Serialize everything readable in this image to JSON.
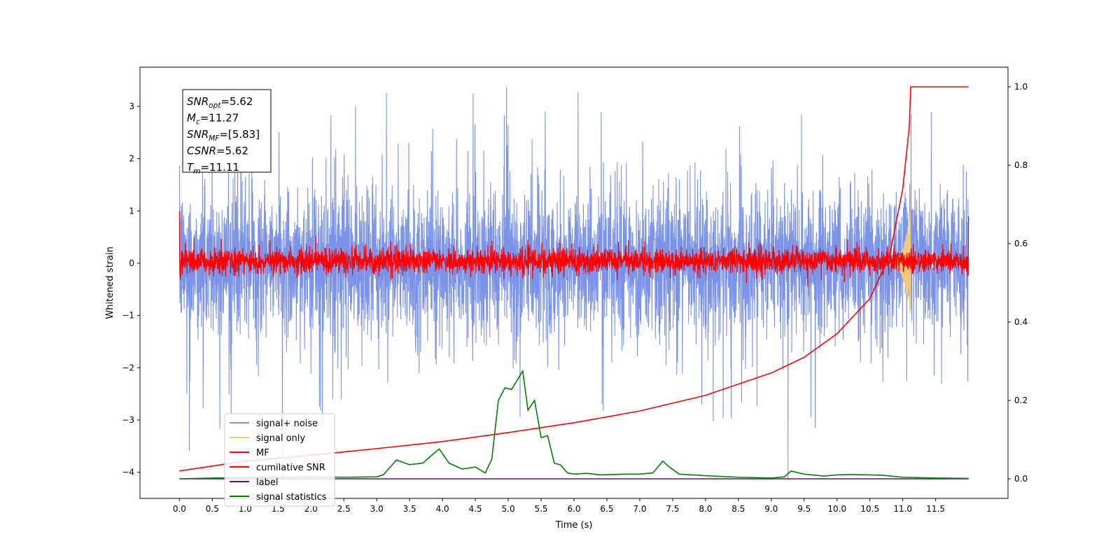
{
  "chart_data": {
    "type": "line",
    "xlabel": "Time (s)",
    "ylabel": "Whitened strain",
    "xlim": [
      -0.6,
      12.6
    ],
    "ylim": [
      -4.5,
      3.75
    ],
    "y2lim": [
      -0.05,
      1.05
    ],
    "x_ticks": [
      0.0,
      0.5,
      1.0,
      1.5,
      2.0,
      2.5,
      3.0,
      3.5,
      4.0,
      4.5,
      5.0,
      5.5,
      6.0,
      6.5,
      7.0,
      7.5,
      8.0,
      8.5,
      9.0,
      9.5,
      10.0,
      10.5,
      11.0,
      11.5
    ],
    "x_tick_labels": [
      "0.0",
      "0.5",
      "1.0",
      "1.5",
      "2.0",
      "2.5",
      "3.0",
      "3.5",
      "4.0",
      "4.5",
      "5.0",
      "5.5",
      "6.0",
      "6.5",
      "7.0",
      "7.5",
      "8.0",
      "8.5",
      "9.0",
      "9.5",
      "10.0",
      "10.5",
      "11.0",
      "11.5"
    ],
    "y_ticks": [
      3,
      2,
      1,
      0,
      -1,
      -2,
      -3,
      -4
    ],
    "y_tick_labels": [
      "3",
      "2",
      "1",
      "0",
      "−1",
      "−2",
      "−3",
      "−4"
    ],
    "y2_ticks": [
      1.0,
      0.8,
      0.6,
      0.4,
      0.2,
      0.0
    ],
    "y2_tick_labels": [
      "1.0",
      "0.8",
      "0.6",
      "0.4",
      "0.2",
      "0.0"
    ],
    "grid": false,
    "legend_position": "lower-left",
    "series": [
      {
        "name": "signal+ noise",
        "color": "#7b93e8",
        "axis": "left",
        "kind": "noise",
        "t_range": [
          0.0,
          12.0
        ],
        "typical_envelope": [
          -1.7,
          1.8
        ],
        "max_peak": 3.38,
        "min_peak": -4.15
      },
      {
        "name": "signal only",
        "color": "#f2c879",
        "axis": "left",
        "kind": "chirp",
        "t_range": [
          10.8,
          11.12
        ],
        "peak": 1.0,
        "trough": -0.68
      },
      {
        "name": "MF",
        "color": "#ff0000",
        "axis": "left",
        "kind": "noise",
        "t_range": [
          0.0,
          12.0
        ],
        "typical_envelope": [
          -0.22,
          0.3
        ],
        "start_spike": 1.0,
        "end_value": 0.9
      },
      {
        "name": "cumilative SNR",
        "color": "#ff0000",
        "axis": "right",
        "x": [
          0.0,
          1.0,
          2.0,
          3.0,
          4.0,
          5.0,
          6.0,
          7.0,
          8.0,
          9.0,
          9.5,
          10.0,
          10.5,
          10.8,
          11.0,
          11.1,
          11.12,
          12.0
        ],
        "y": [
          0.02,
          0.045,
          0.06,
          0.077,
          0.095,
          0.118,
          0.143,
          0.173,
          0.213,
          0.27,
          0.31,
          0.37,
          0.46,
          0.57,
          0.74,
          0.9,
          1.0,
          1.0
        ]
      },
      {
        "name": "label",
        "color": "#6a0f7a",
        "axis": "right",
        "x": [
          0.0,
          12.0
        ],
        "y": [
          0.0,
          0.0
        ]
      },
      {
        "name": "signal statistics",
        "color": "#008000",
        "axis": "right",
        "x": [
          0.0,
          0.5,
          1.0,
          1.5,
          2.0,
          2.5,
          3.0,
          3.1,
          3.3,
          3.5,
          3.7,
          3.85,
          3.95,
          4.1,
          4.3,
          4.5,
          4.65,
          4.75,
          4.85,
          4.95,
          5.05,
          5.15,
          5.22,
          5.3,
          5.4,
          5.5,
          5.6,
          5.7,
          5.8,
          5.9,
          6.0,
          6.2,
          6.4,
          6.6,
          6.8,
          7.0,
          7.2,
          7.35,
          7.45,
          7.6,
          7.8,
          8.0,
          8.5,
          9.0,
          9.2,
          9.3,
          9.5,
          9.8,
          10.0,
          10.2,
          10.5,
          10.7,
          11.0,
          11.5,
          12.0
        ],
        "y": [
          0.0,
          0.002,
          0.003,
          0.004,
          0.005,
          0.004,
          0.005,
          0.01,
          0.048,
          0.036,
          0.04,
          0.062,
          0.076,
          0.04,
          0.025,
          0.03,
          0.015,
          0.05,
          0.2,
          0.232,
          0.228,
          0.255,
          0.275,
          0.175,
          0.2,
          0.105,
          0.11,
          0.04,
          0.035,
          0.015,
          0.012,
          0.014,
          0.01,
          0.011,
          0.012,
          0.012,
          0.015,
          0.045,
          0.03,
          0.012,
          0.01,
          0.008,
          0.004,
          0.002,
          0.005,
          0.02,
          0.012,
          0.007,
          0.01,
          0.011,
          0.01,
          0.009,
          0.004,
          0.002,
          0.001
        ]
      }
    ]
  },
  "annotation": {
    "lines": [
      {
        "main": "SNR",
        "sub": "opt",
        "value": "=5.62"
      },
      {
        "main": "M",
        "sub": "c",
        "value": "=11.27"
      },
      {
        "main": "SNR",
        "sub": "MF",
        "value": "=[5.83]"
      },
      {
        "main": "CSNR",
        "sub": "",
        "value": "=5.62"
      },
      {
        "main": "T",
        "sub": "m",
        "value": "=11.11"
      }
    ]
  },
  "legend": {
    "items": [
      {
        "label": "signal+ noise",
        "color": "#7b93e8"
      },
      {
        "label": "signal only",
        "color": "#f2c879"
      },
      {
        "label": "MF",
        "color": "#ff0000"
      },
      {
        "label": "cumilative SNR",
        "color": "#ff0000"
      },
      {
        "label": "label",
        "color": "#6a0f7a"
      },
      {
        "label": "signal statistics",
        "color": "#008000"
      }
    ]
  }
}
